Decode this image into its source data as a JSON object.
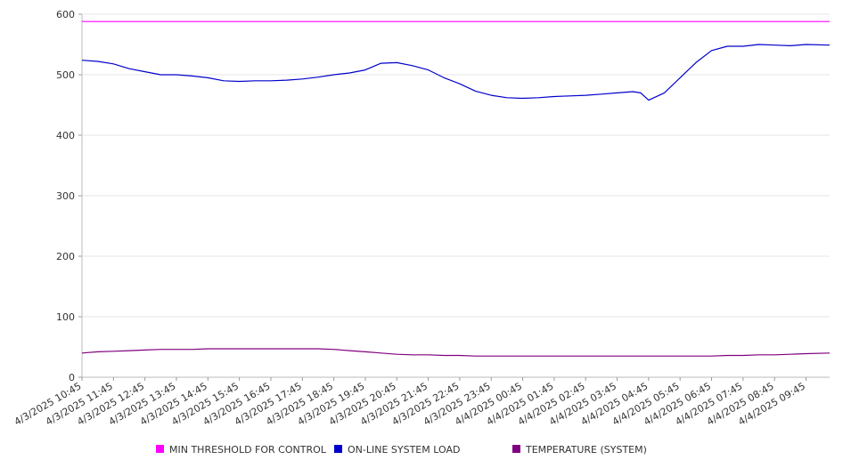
{
  "chart_data": {
    "type": "line",
    "title": "",
    "xlabel": "",
    "ylabel": "",
    "ylim": [
      0,
      600
    ],
    "y_ticks": [
      0,
      100,
      200,
      300,
      400,
      500,
      600
    ],
    "grid": true,
    "legend_position": "bottom",
    "x_tick_labels": [
      "4/3/2025 10:45",
      "4/3/2025 11:45",
      "4/3/2025 12:45",
      "4/3/2025 13:45",
      "4/3/2025 14:45",
      "4/3/2025 15:45",
      "4/3/2025 16:45",
      "4/3/2025 17:45",
      "4/3/2025 18:45",
      "4/3/2025 19:45",
      "4/3/2025 20:45",
      "4/3/2025 21:45",
      "4/3/2025 22:45",
      "4/3/2025 23:45",
      "4/4/2025 00:45",
      "4/4/2025 01:45",
      "4/4/2025 02:45",
      "4/4/2025 03:45",
      "4/4/2025 04:45",
      "4/4/2025 05:45",
      "4/4/2025 06:45",
      "4/4/2025 07:45",
      "4/4/2025 08:45",
      "4/4/2025 09:45"
    ],
    "x": [
      "4/3/2025 10:45",
      "4/3/2025 11:15",
      "4/3/2025 11:45",
      "4/3/2025 12:15",
      "4/3/2025 12:45",
      "4/3/2025 13:15",
      "4/3/2025 13:45",
      "4/3/2025 14:15",
      "4/3/2025 14:45",
      "4/3/2025 15:15",
      "4/3/2025 15:45",
      "4/3/2025 16:15",
      "4/3/2025 16:45",
      "4/3/2025 17:15",
      "4/3/2025 17:45",
      "4/3/2025 18:15",
      "4/3/2025 18:45",
      "4/3/2025 19:15",
      "4/3/2025 19:45",
      "4/3/2025 20:15",
      "4/3/2025 20:45",
      "4/3/2025 21:15",
      "4/3/2025 21:45",
      "4/3/2025 22:15",
      "4/3/2025 22:45",
      "4/3/2025 23:15",
      "4/3/2025 23:45",
      "4/4/2025 00:15",
      "4/4/2025 00:45",
      "4/4/2025 01:15",
      "4/4/2025 01:45",
      "4/4/2025 02:15",
      "4/4/2025 02:45",
      "4/4/2025 03:15",
      "4/4/2025 03:45",
      "4/4/2025 04:15",
      "4/4/2025 04:30",
      "4/4/2025 04:45",
      "4/4/2025 05:15",
      "4/4/2025 05:45",
      "4/4/2025 06:15",
      "4/4/2025 06:45",
      "4/4/2025 07:15",
      "4/4/2025 07:45",
      "4/4/2025 08:15",
      "4/4/2025 08:45",
      "4/4/2025 09:15",
      "4/4/2025 09:45",
      "4/4/2025 10:30"
    ],
    "series": [
      {
        "name": "MIN THRESHOLD FOR CONTROL",
        "color": "#ff00ff",
        "values": [
          588,
          588,
          588,
          588,
          588,
          588,
          588,
          588,
          588,
          588,
          588,
          588,
          588,
          588,
          588,
          588,
          588,
          588,
          588,
          588,
          588,
          588,
          588,
          588,
          588,
          588,
          588,
          588,
          588,
          588,
          588,
          588,
          588,
          588,
          588,
          588,
          588,
          588,
          588,
          588,
          588,
          588,
          588,
          588,
          588,
          588,
          588,
          588,
          588
        ]
      },
      {
        "name": "ON-LINE SYSTEM LOAD",
        "color": "#0000cc",
        "values": [
          524,
          522,
          518,
          510,
          505,
          500,
          500,
          498,
          495,
          490,
          489,
          490,
          490,
          491,
          493,
          496,
          500,
          503,
          508,
          519,
          520,
          515,
          508,
          495,
          485,
          473,
          466,
          462,
          461,
          462,
          464,
          465,
          466,
          468,
          470,
          472,
          470,
          458,
          470,
          495,
          520,
          540,
          547,
          547,
          550,
          549,
          548,
          550,
          549
        ]
      },
      {
        "name": "TEMPERATURE (SYSTEM)",
        "color": "#800080",
        "values": [
          40,
          42,
          43,
          44,
          45,
          46,
          46,
          46,
          47,
          47,
          47,
          47,
          47,
          47,
          47,
          47,
          46,
          44,
          42,
          40,
          38,
          37,
          37,
          36,
          36,
          35,
          35,
          35,
          35,
          35,
          35,
          35,
          35,
          35,
          35,
          35,
          35,
          35,
          35,
          35,
          35,
          35,
          36,
          36,
          37,
          37,
          38,
          39,
          40
        ]
      }
    ]
  }
}
